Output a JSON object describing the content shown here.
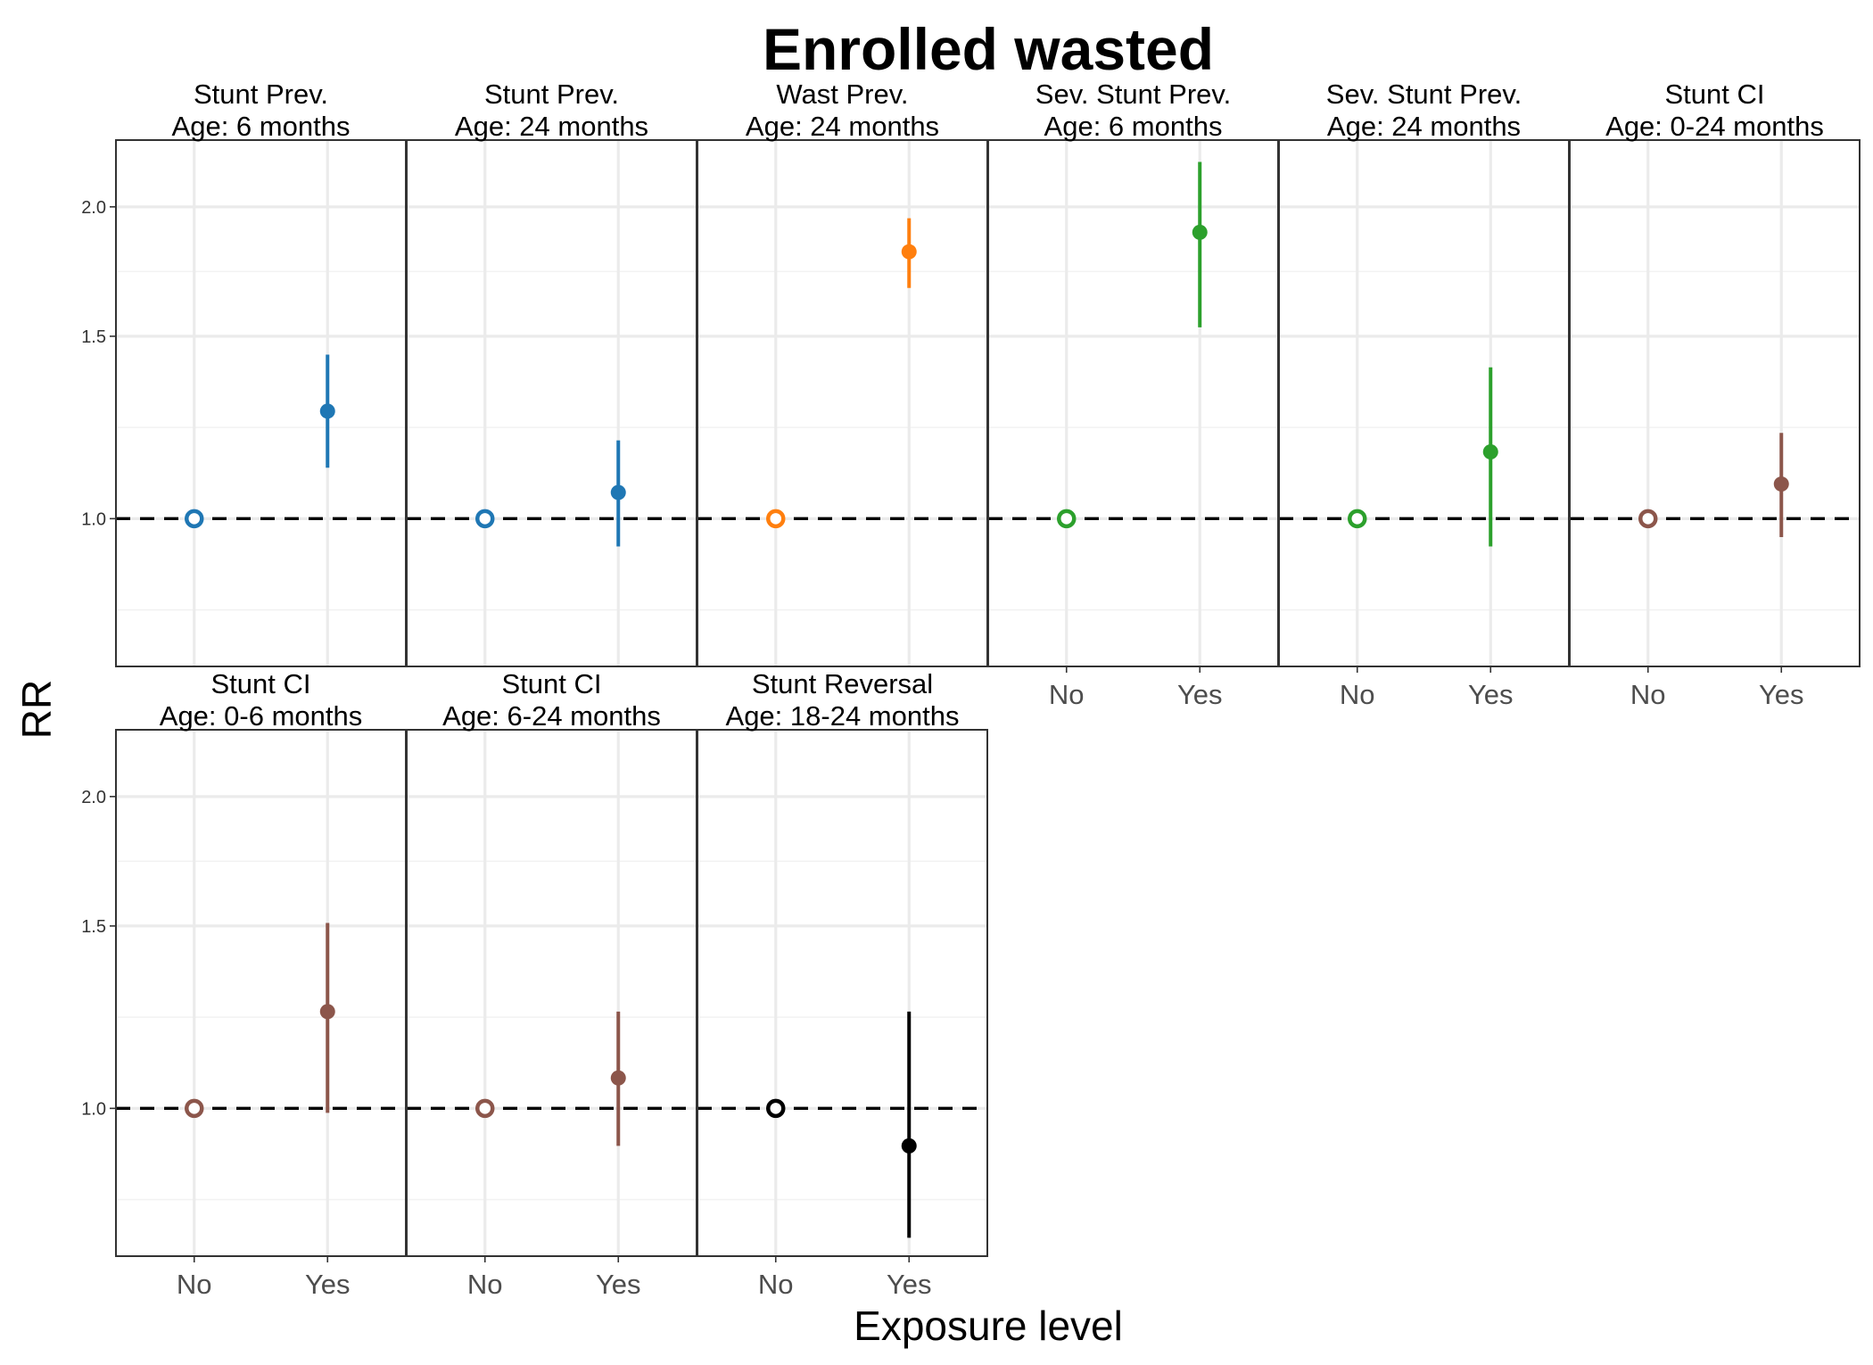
{
  "chart_data": {
    "type": "scatter",
    "title": "Enrolled wasted",
    "xlabel": "Exposure level",
    "ylabel": "RR",
    "y_scale": "log",
    "ylim": [
      0.72,
      2.32
    ],
    "yticks": [
      1.0,
      1.5,
      2.0
    ],
    "ytick_labels": [
      "1.0",
      "1.5",
      "2.0"
    ],
    "categories": [
      "No",
      "Yes"
    ],
    "reference_line": 1.0,
    "grid": true,
    "panels": [
      {
        "strip_line1": "Stunt Prev.",
        "strip_line2": "Age: 6 months",
        "color": "#1f77b4",
        "points": [
          {
            "x": "No",
            "rr": 1.0,
            "lower": 1.0,
            "upper": 1.0
          },
          {
            "x": "Yes",
            "rr": 1.27,
            "lower": 1.12,
            "upper": 1.44
          }
        ]
      },
      {
        "strip_line1": "Stunt Prev.",
        "strip_line2": "Age: 24 months",
        "color": "#1f77b4",
        "points": [
          {
            "x": "No",
            "rr": 1.0,
            "lower": 1.0,
            "upper": 1.0
          },
          {
            "x": "Yes",
            "rr": 1.06,
            "lower": 0.94,
            "upper": 1.19
          }
        ]
      },
      {
        "strip_line1": "Wast Prev.",
        "strip_line2": "Age: 24 months",
        "color": "#ff7f0e",
        "points": [
          {
            "x": "No",
            "rr": 1.0,
            "lower": 1.0,
            "upper": 1.0
          },
          {
            "x": "Yes",
            "rr": 1.81,
            "lower": 1.67,
            "upper": 1.95
          }
        ]
      },
      {
        "strip_line1": "Sev. Stunt Prev.",
        "strip_line2": "Age: 6 months",
        "color": "#2ca02c",
        "points": [
          {
            "x": "No",
            "rr": 1.0,
            "lower": 1.0,
            "upper": 1.0
          },
          {
            "x": "Yes",
            "rr": 1.89,
            "lower": 1.53,
            "upper": 2.21
          }
        ]
      },
      {
        "strip_line1": "Sev. Stunt Prev.",
        "strip_line2": "Age: 24 months",
        "color": "#2ca02c",
        "points": [
          {
            "x": "No",
            "rr": 1.0,
            "lower": 1.0,
            "upper": 1.0
          },
          {
            "x": "Yes",
            "rr": 1.16,
            "lower": 0.94,
            "upper": 1.4
          }
        ]
      },
      {
        "strip_line1": "Stunt CI",
        "strip_line2": "Age: 0-24 months",
        "color": "#8c564b",
        "points": [
          {
            "x": "No",
            "rr": 1.0,
            "lower": 1.0,
            "upper": 1.0
          },
          {
            "x": "Yes",
            "rr": 1.08,
            "lower": 0.96,
            "upper": 1.21
          }
        ]
      },
      {
        "strip_line1": "Stunt CI",
        "strip_line2": "Age: 0-6 months",
        "color": "#8c564b",
        "points": [
          {
            "x": "No",
            "rr": 1.0,
            "lower": 1.0,
            "upper": 1.0
          },
          {
            "x": "Yes",
            "rr": 1.24,
            "lower": 0.99,
            "upper": 1.51
          }
        ]
      },
      {
        "strip_line1": "Stunt CI",
        "strip_line2": "Age: 6-24 months",
        "color": "#8c564b",
        "points": [
          {
            "x": "No",
            "rr": 1.0,
            "lower": 1.0,
            "upper": 1.0
          },
          {
            "x": "Yes",
            "rr": 1.07,
            "lower": 0.92,
            "upper": 1.24
          }
        ]
      },
      {
        "strip_line1": "Stunt Reversal",
        "strip_line2": "Age: 18-24 months",
        "color": "#000000",
        "points": [
          {
            "x": "No",
            "rr": 1.0,
            "lower": 1.0,
            "upper": 1.0
          },
          {
            "x": "Yes",
            "rr": 0.92,
            "lower": 0.75,
            "upper": 1.24
          }
        ]
      }
    ]
  }
}
